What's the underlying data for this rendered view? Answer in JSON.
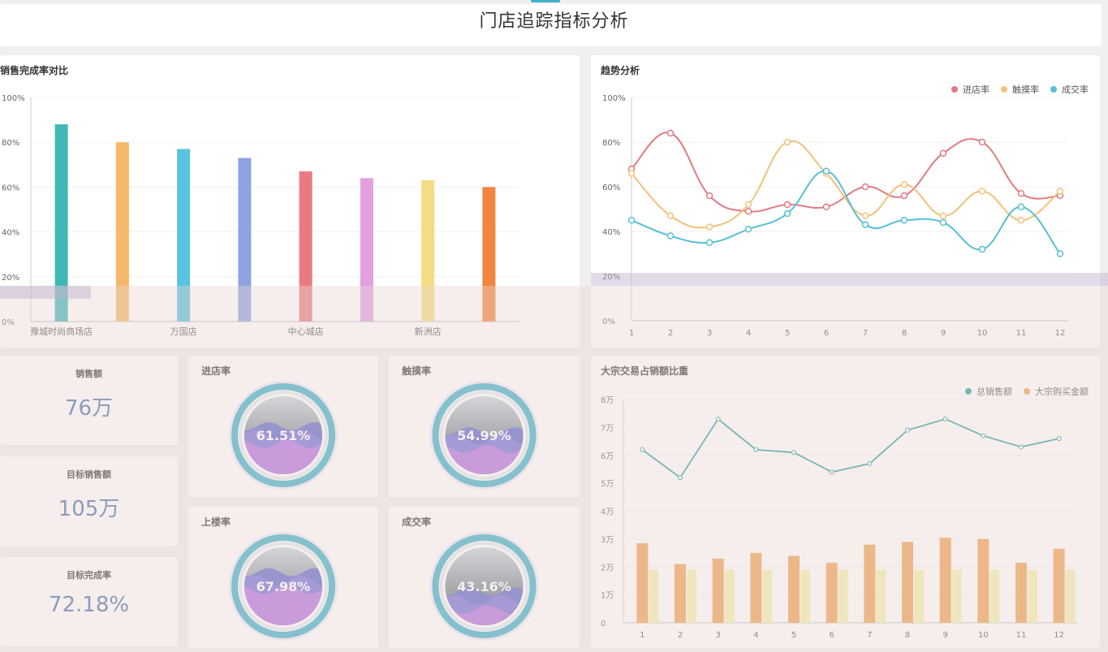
{
  "page": {
    "title": "门店追踪指标分析"
  },
  "sales_chart": {
    "title": "销售完成率对比"
  },
  "trend_chart": {
    "title": "趋势分析",
    "legend": [
      {
        "name": "进店率",
        "color": "#e07b82"
      },
      {
        "name": "触摸率",
        "color": "#f2c27a"
      },
      {
        "name": "成交率",
        "color": "#56bfd5"
      }
    ]
  },
  "kpis": [
    {
      "label": "销售额",
      "value": "76万"
    },
    {
      "label": "目标销售额",
      "value": "105万"
    },
    {
      "label": "目标完成率",
      "value": "72.18%"
    }
  ],
  "gauges": [
    {
      "title": "进店率",
      "value": "61.51%"
    },
    {
      "title": "触摸率",
      "value": "54.99%"
    },
    {
      "title": "上楼率",
      "value": "67.98%"
    },
    {
      "title": "成交率",
      "value": "43.16%"
    }
  ],
  "bulk_chart": {
    "title": "大宗交易占销额比重",
    "legend": [
      {
        "name": "总销售额",
        "color": "#2aa198"
      },
      {
        "name": "大宗购买金额",
        "color": "#f0a253"
      }
    ]
  },
  "chart_data": [
    {
      "type": "bar",
      "title": "销售完成率对比",
      "categories": [
        "豫城时尚商场店",
        "",
        "万国店",
        "",
        "中心城店",
        "",
        "新洲店",
        ""
      ],
      "values": [
        88,
        80,
        77,
        73,
        67,
        64,
        63,
        60
      ],
      "colors": [
        "#3fb7b7",
        "#f7b86a",
        "#57c3e1",
        "#8da2df",
        "#ea7a7f",
        "#e39fe0",
        "#f3dc82",
        "#f2853f"
      ],
      "ylim": [
        0,
        100
      ],
      "yticks": [
        "0%",
        "20%",
        "40%",
        "60%",
        "80%",
        "100%"
      ],
      "ylabel": "",
      "xlabel": ""
    },
    {
      "type": "line",
      "title": "趋势分析",
      "x": [
        "1",
        "2",
        "3",
        "4",
        "5",
        "6",
        "7",
        "8",
        "9",
        "10",
        "11",
        "12"
      ],
      "series": [
        {
          "name": "进店率",
          "color": "#e07b82",
          "values": [
            68,
            84,
            56,
            49,
            52,
            51,
            60,
            56,
            75,
            80,
            57,
            56
          ]
        },
        {
          "name": "触摸率",
          "color": "#f2c27a",
          "values": [
            66,
            47,
            42,
            52,
            80,
            66,
            47,
            61,
            47,
            58,
            45,
            58
          ]
        },
        {
          "name": "成交率",
          "color": "#56bfd5",
          "values": [
            45,
            38,
            35,
            41,
            48,
            67,
            43,
            45,
            44,
            32,
            51,
            30
          ]
        }
      ],
      "ylim": [
        0,
        100
      ],
      "yticks": [
        "0%",
        "20%",
        "40%",
        "60%",
        "80%",
        "100%"
      ]
    },
    {
      "type": "bar",
      "title": "大宗交易占销额比重",
      "x": [
        "1",
        "2",
        "3",
        "4",
        "5",
        "6",
        "7",
        "8",
        "9",
        "10",
        "11",
        "12"
      ],
      "series": [
        {
          "name": "总销售额",
          "type": "line",
          "color": "#2aa198",
          "values": [
            62000,
            52000,
            73000,
            62000,
            61000,
            54000,
            57000,
            69000,
            73000,
            67000,
            63000,
            66000
          ]
        },
        {
          "name": "大宗购买金额",
          "type": "bar",
          "color": "#f0a253",
          "values": [
            28500,
            21000,
            23000,
            25000,
            24000,
            21500,
            28000,
            29000,
            30500,
            30000,
            21500,
            26500
          ]
        }
      ],
      "ylim": [
        0,
        80000
      ],
      "yticks": [
        "0",
        "1万",
        "2万",
        "3万",
        "4万",
        "5万",
        "6万",
        "7万",
        "8万"
      ]
    }
  ]
}
